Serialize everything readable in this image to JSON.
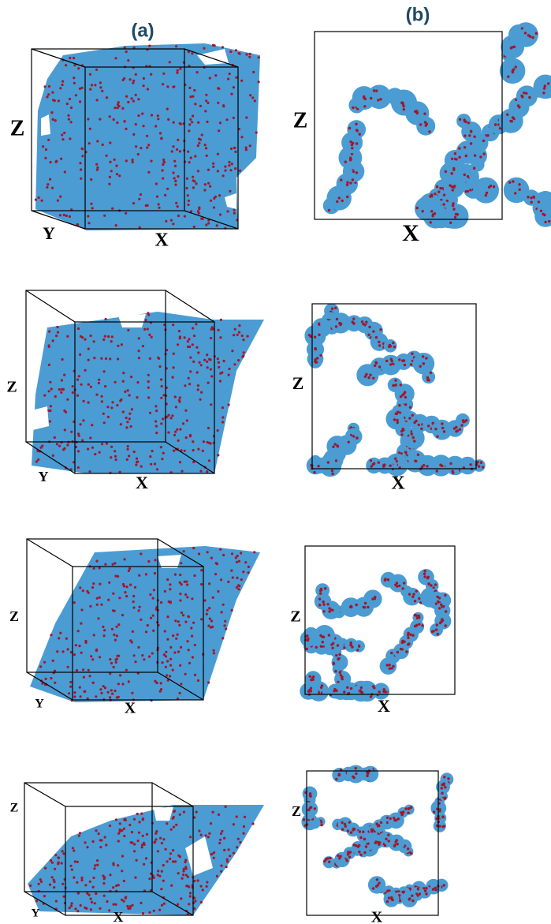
{
  "figure": {
    "panel_labels": [
      "(a)",
      "(b)"
    ],
    "rows": [
      {
        "a": {
          "z": "Z",
          "y": "Y",
          "x": "X"
        },
        "b": {
          "z": "Z",
          "x": "X"
        }
      },
      {
        "a": {
          "z": "Z",
          "y": "Y",
          "x": "X"
        },
        "b": {
          "z": "Z",
          "x": "X"
        }
      },
      {
        "a": {
          "z": "Z",
          "y": "Y",
          "x": "X"
        },
        "b": {
          "z": "Z",
          "x": "X"
        }
      },
      {
        "a": {
          "z": "Z",
          "y": "Y",
          "x": "X"
        },
        "b": {
          "z": "Z",
          "x": "X"
        }
      }
    ]
  }
}
